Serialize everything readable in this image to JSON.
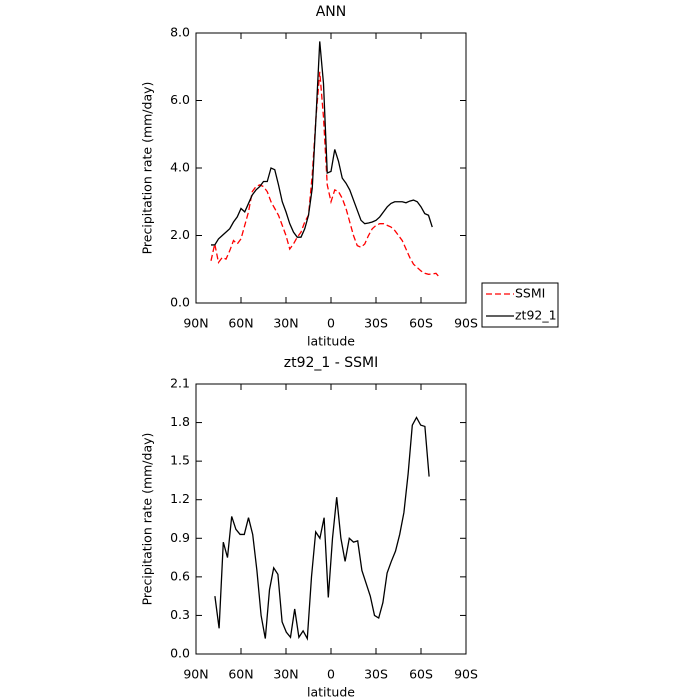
{
  "chart_data": [
    {
      "type": "line",
      "title": "ANN",
      "xlabel": "latitude",
      "ylabel": "Precipitation rate (mm/day)",
      "x": [
        80,
        77.5,
        75,
        72.5,
        70,
        67.5,
        65,
        62.5,
        60,
        57.5,
        55,
        52.5,
        50,
        47.5,
        45,
        42.5,
        40,
        37.5,
        35,
        32.5,
        30,
        27.5,
        25,
        22.5,
        20,
        17.5,
        15,
        12.5,
        10,
        7.5,
        5,
        2.5,
        0,
        -2.5,
        -5,
        -7.5,
        -10,
        -12.5,
        -15,
        -17.5,
        -20,
        -22.5,
        -25,
        -27.5,
        -30,
        -32.5,
        -35,
        -37.5,
        -40,
        -42.5,
        -45,
        -47.5,
        -50,
        -52.5,
        -55,
        -57.5,
        -60,
        -62.5,
        -65,
        -67.5,
        -70,
        -72.5,
        -75
      ],
      "series": [
        {
          "name": "SSMI",
          "color": "#ff0000",
          "linestyle": "dashed",
          "values": [
            1.25,
            1.75,
            1.2,
            1.35,
            1.3,
            1.55,
            1.85,
            1.75,
            1.9,
            2.3,
            2.7,
            3.3,
            3.45,
            3.5,
            3.45,
            3.3,
            3.0,
            2.8,
            2.6,
            2.3,
            2.0,
            1.6,
            1.75,
            1.95,
            2.1,
            2.4,
            2.6,
            3.8,
            5.5,
            6.85,
            5.5,
            3.5,
            3.0,
            3.35,
            3.3,
            3.1,
            2.8,
            2.4,
            2.0,
            1.7,
            1.65,
            1.75,
            2.0,
            2.2,
            2.3,
            2.35,
            2.35,
            2.3,
            2.25,
            2.15,
            2.0,
            1.85,
            1.6,
            1.35,
            1.15,
            1.05,
            0.95,
            0.88,
            0.85,
            0.86,
            0.88,
            0.75,
            null
          ]
        },
        {
          "name": "zt92_1",
          "color": "#000000",
          "linestyle": "solid",
          "values": [
            1.72,
            1.72,
            1.9,
            2.0,
            2.1,
            2.2,
            2.4,
            2.55,
            2.8,
            2.7,
            2.95,
            3.2,
            3.35,
            3.45,
            3.6,
            3.6,
            4.0,
            3.95,
            3.5,
            3.0,
            2.7,
            2.35,
            2.1,
            1.95,
            1.95,
            2.2,
            2.6,
            3.4,
            5.5,
            7.75,
            6.5,
            3.85,
            3.9,
            4.55,
            4.2,
            3.7,
            3.55,
            3.35,
            3.05,
            2.75,
            2.45,
            2.35,
            2.37,
            2.4,
            2.45,
            2.55,
            2.7,
            2.85,
            2.95,
            3.0,
            3.0,
            3.0,
            2.97,
            3.02,
            3.05,
            3.0,
            2.85,
            2.65,
            2.6,
            2.25,
            null,
            null,
            null
          ]
        }
      ],
      "xlim": [
        90,
        -90
      ],
      "xticks": [
        {
          "value": 90,
          "label": "90N"
        },
        {
          "value": 60,
          "label": "60N"
        },
        {
          "value": 30,
          "label": "30N"
        },
        0,
        {
          "value": -30,
          "label": "30S"
        },
        {
          "value": -60,
          "label": "60S"
        },
        {
          "value": -90,
          "label": "90S"
        }
      ],
      "ylim": [
        0,
        8
      ],
      "yticks": [
        {
          "value": 0,
          "label": "0.0"
        },
        {
          "value": 2,
          "label": "2.0"
        },
        {
          "value": 4,
          "label": "4.0"
        },
        {
          "value": 6,
          "label": "6.0"
        },
        {
          "value": 8,
          "label": "8.0"
        }
      ],
      "legend": "outside-right"
    },
    {
      "type": "line",
      "title": "zt92_1 - SSMI",
      "xlabel": "latitude",
      "ylabel": "Precipitation rate (mm/day)",
      "x": [
        77.4,
        74.6,
        71.8,
        69.0,
        66.2,
        63.4,
        60.6,
        57.8,
        55.0,
        52.2,
        49.4,
        46.6,
        43.8,
        41.0,
        38.2,
        35.4,
        32.6,
        29.8,
        27.0,
        24.2,
        21.4,
        18.6,
        15.8,
        13.0,
        10.2,
        7.4,
        4.6,
        1.8,
        -1.0,
        -3.8,
        -6.6,
        -9.4,
        -12.2,
        -15.0,
        -17.8,
        -20.6,
        -23.4,
        -26.2,
        -29.0,
        -31.8,
        -34.6,
        -37.4,
        -40.2,
        -43.0,
        -45.8,
        -48.6,
        -51.4,
        -54.2,
        -57.0,
        -59.8,
        -62.6,
        -65.4
      ],
      "series": [
        {
          "color": "#000000",
          "linestyle": "solid",
          "values": [
            0.45,
            0.2,
            0.87,
            0.75,
            1.07,
            0.97,
            0.93,
            0.93,
            1.06,
            0.93,
            0.65,
            0.3,
            0.12,
            0.5,
            0.67,
            0.62,
            0.25,
            0.17,
            0.13,
            0.35,
            0.13,
            0.18,
            0.12,
            0.6,
            0.95,
            0.9,
            1.06,
            0.44,
            0.9,
            1.22,
            0.9,
            0.72,
            0.9,
            0.87,
            0.88,
            0.65,
            0.55,
            0.45,
            0.3,
            0.28,
            0.4,
            0.63,
            0.72,
            0.8,
            0.93,
            1.1,
            1.4,
            1.78,
            1.84,
            1.78,
            1.77,
            1.38
          ]
        }
      ],
      "xlim": [
        90,
        -90
      ],
      "xticks": [
        {
          "value": 90,
          "label": "90N"
        },
        {
          "value": 60,
          "label": "60N"
        },
        {
          "value": 30,
          "label": "30N"
        },
        0,
        {
          "value": -30,
          "label": "30S"
        },
        {
          "value": -60,
          "label": "60S"
        },
        {
          "value": -90,
          "label": "90S"
        }
      ],
      "ylim": [
        0,
        2.1
      ],
      "yticks": [
        {
          "value": 0,
          "label": "0.0"
        },
        {
          "value": 0.3,
          "label": "0.3"
        },
        {
          "value": 0.6,
          "label": "0.6"
        },
        {
          "value": 0.9,
          "label": "0.9"
        },
        {
          "value": 1.2,
          "label": "1.2"
        },
        {
          "value": 1.5,
          "label": "1.5"
        },
        {
          "value": 1.8,
          "label": "1.8"
        },
        {
          "value": 2.1,
          "label": "2.1"
        }
      ]
    }
  ]
}
